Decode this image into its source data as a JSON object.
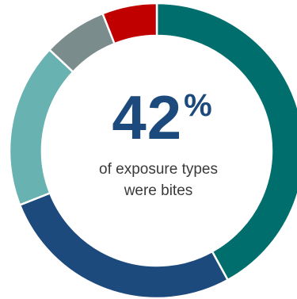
{
  "chart_data": {
    "type": "pie",
    "variant": "donut",
    "slices": [
      {
        "value": 42,
        "color": "#006e6c"
      },
      {
        "value": 27,
        "color": "#1c4a7c"
      },
      {
        "value": 18,
        "color": "#68b2b1"
      },
      {
        "value": 7,
        "color": "#7b8c8c"
      },
      {
        "value": 6,
        "color": "#c00000"
      }
    ],
    "center": {
      "stat_number": "42",
      "stat_unit": "%",
      "caption_line1": "of exposure types",
      "caption_line2": "were bites"
    }
  }
}
